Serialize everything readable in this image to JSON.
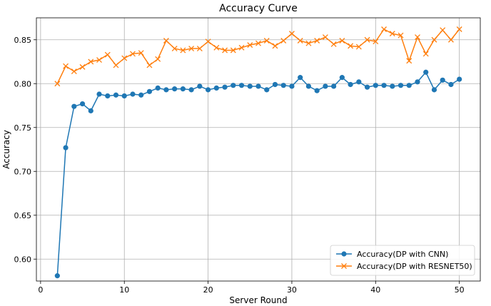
{
  "chart_data": {
    "type": "line",
    "title": "Accuracy Curve",
    "xlabel": "Server Round",
    "ylabel": "Accuracy",
    "xlim": [
      -0.5,
      52.5
    ],
    "ylim": [
      0.575,
      0.875
    ],
    "xticks": [
      0,
      10,
      20,
      30,
      40,
      50
    ],
    "yticks": [
      0.6,
      0.65,
      0.7,
      0.75,
      0.8,
      0.85
    ],
    "grid": true,
    "legend_position": "bottom-right",
    "series": [
      {
        "name": "Accuracy(DP with CNN)",
        "color": "#1f77b4",
        "marker": "circle",
        "x": [
          2,
          3,
          4,
          5,
          6,
          7,
          8,
          9,
          10,
          11,
          12,
          13,
          14,
          15,
          16,
          17,
          18,
          19,
          20,
          21,
          22,
          23,
          24,
          25,
          26,
          27,
          28,
          29,
          30,
          31,
          32,
          33,
          34,
          35,
          36,
          37,
          38,
          39,
          40,
          41,
          42,
          43,
          44,
          45,
          46,
          47,
          48,
          49,
          50
        ],
        "y": [
          0.581,
          0.727,
          0.774,
          0.777,
          0.769,
          0.788,
          0.786,
          0.787,
          0.786,
          0.788,
          0.787,
          0.791,
          0.795,
          0.793,
          0.794,
          0.794,
          0.793,
          0.797,
          0.793,
          0.795,
          0.796,
          0.798,
          0.798,
          0.797,
          0.797,
          0.793,
          0.799,
          0.798,
          0.797,
          0.807,
          0.797,
          0.792,
          0.797,
          0.797,
          0.807,
          0.799,
          0.802,
          0.796,
          0.798,
          0.798,
          0.797,
          0.798,
          0.798,
          0.802,
          0.813,
          0.793,
          0.804,
          0.799,
          0.805
        ]
      },
      {
        "name": "Accuracy(DP with RESNET50)",
        "color": "#ff7f0e",
        "marker": "x",
        "x": [
          2,
          3,
          4,
          5,
          6,
          7,
          8,
          9,
          10,
          11,
          12,
          13,
          14,
          15,
          16,
          17,
          18,
          19,
          20,
          21,
          22,
          23,
          24,
          25,
          26,
          27,
          28,
          29,
          30,
          31,
          32,
          33,
          34,
          35,
          36,
          37,
          38,
          39,
          40,
          41,
          42,
          43,
          44,
          45,
          46,
          47,
          48,
          49,
          50
        ],
        "y": [
          0.8,
          0.82,
          0.814,
          0.819,
          0.825,
          0.827,
          0.833,
          0.821,
          0.829,
          0.834,
          0.835,
          0.821,
          0.828,
          0.849,
          0.84,
          0.838,
          0.84,
          0.84,
          0.848,
          0.841,
          0.838,
          0.838,
          0.841,
          0.844,
          0.846,
          0.849,
          0.843,
          0.849,
          0.857,
          0.849,
          0.846,
          0.849,
          0.853,
          0.845,
          0.849,
          0.843,
          0.842,
          0.85,
          0.848,
          0.862,
          0.857,
          0.855,
          0.826,
          0.853,
          0.834,
          0.85,
          0.861,
          0.85,
          0.862
        ]
      }
    ]
  }
}
